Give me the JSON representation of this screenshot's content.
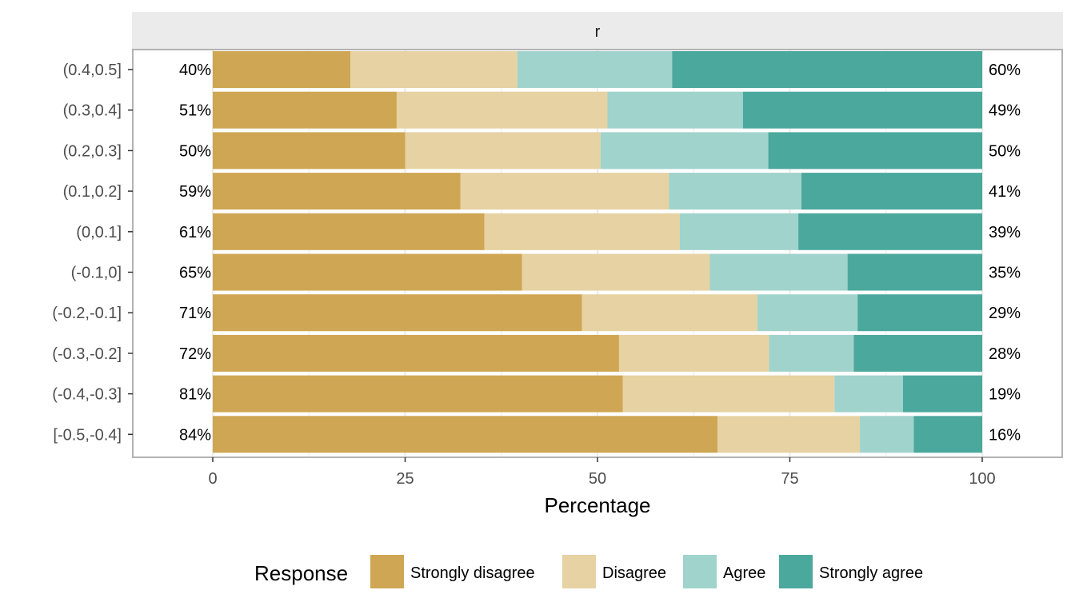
{
  "chart_data": {
    "type": "bar",
    "orientation": "horizontal",
    "stacked": true,
    "facet_label": "r",
    "xlabel": "Percentage",
    "ylabel": "",
    "xlim": [
      0,
      100
    ],
    "x_ticks": [
      0,
      25,
      50,
      75,
      100
    ],
    "grid": true,
    "legend_title": "Response",
    "legend_position": "bottom",
    "categories": [
      "[-0.5,-0.4]",
      "(-0.4,-0.3]",
      "(-0.3,-0.2]",
      "(-0.2,-0.1]",
      "(-0.1,0]",
      "(0,0.1]",
      "(0.1,0.2]",
      "(0.2,0.3]",
      "(0.3,0.4]",
      "(0.4,0.5]"
    ],
    "series": [
      {
        "name": "Strongly disagree",
        "color": "#CFA653",
        "values": [
          65.6,
          53.3,
          52.8,
          48.0,
          40.2,
          35.3,
          32.2,
          25.0,
          23.9,
          17.9
        ]
      },
      {
        "name": "Disagree",
        "color": "#E6D2A2",
        "values": [
          18.5,
          27.5,
          19.5,
          22.8,
          24.4,
          25.4,
          27.1,
          25.4,
          27.4,
          21.7
        ]
      },
      {
        "name": "Agree",
        "color": "#A0D3CC",
        "values": [
          7.0,
          8.9,
          11.0,
          13.0,
          17.9,
          15.4,
          17.2,
          21.8,
          17.6,
          20.1
        ]
      },
      {
        "name": "Strongly agree",
        "color": "#4BA89D",
        "values": [
          8.9,
          10.3,
          16.7,
          16.2,
          17.5,
          23.9,
          23.5,
          27.8,
          31.1,
          40.3
        ]
      }
    ],
    "left_labels": [
      "84%",
      "81%",
      "72%",
      "71%",
      "65%",
      "61%",
      "59%",
      "50%",
      "51%",
      "40%"
    ],
    "right_labels": [
      "16%",
      "19%",
      "28%",
      "29%",
      "35%",
      "39%",
      "41%",
      "50%",
      "49%",
      "60%"
    ]
  }
}
